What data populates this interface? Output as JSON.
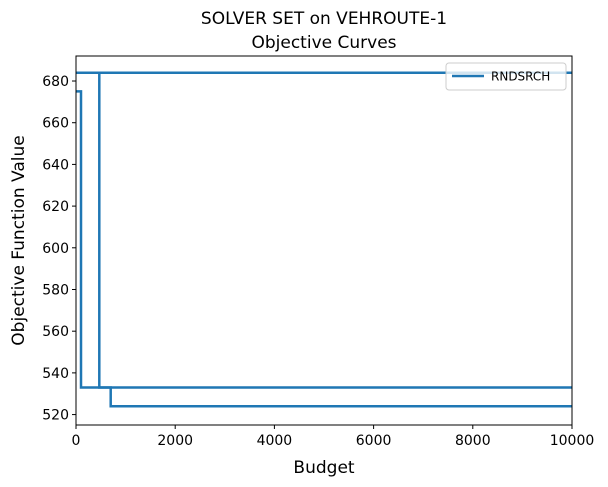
{
  "chart_data": {
    "type": "line",
    "title": "SOLVER SET on VEHROUTE-1",
    "subtitle": "Objective Curves",
    "xlabel": "Budget",
    "ylabel": "Objective Function Value",
    "xlim": [
      0,
      10000
    ],
    "ylim": [
      515,
      692
    ],
    "xticks": [
      0,
      2000,
      4000,
      6000,
      8000,
      10000
    ],
    "yticks": [
      520,
      540,
      560,
      580,
      600,
      620,
      640,
      660,
      680
    ],
    "grid": false,
    "legend": {
      "position": "top-right",
      "entries": [
        "RNDSRCH"
      ]
    },
    "color": "#1f77b4",
    "series": [
      {
        "name": "RNDSRCH",
        "lines": [
          {
            "x": [
              0,
              10000
            ],
            "y": [
              684,
              684
            ]
          },
          {
            "x": [
              0,
              100,
              100,
              10000
            ],
            "y": [
              675,
              675,
              533,
              533
            ]
          },
          {
            "x": [
              0,
              470,
              470,
              700,
              700,
              10000
            ],
            "y": [
              684,
              684,
              533,
              533,
              524,
              524
            ]
          }
        ]
      }
    ]
  }
}
